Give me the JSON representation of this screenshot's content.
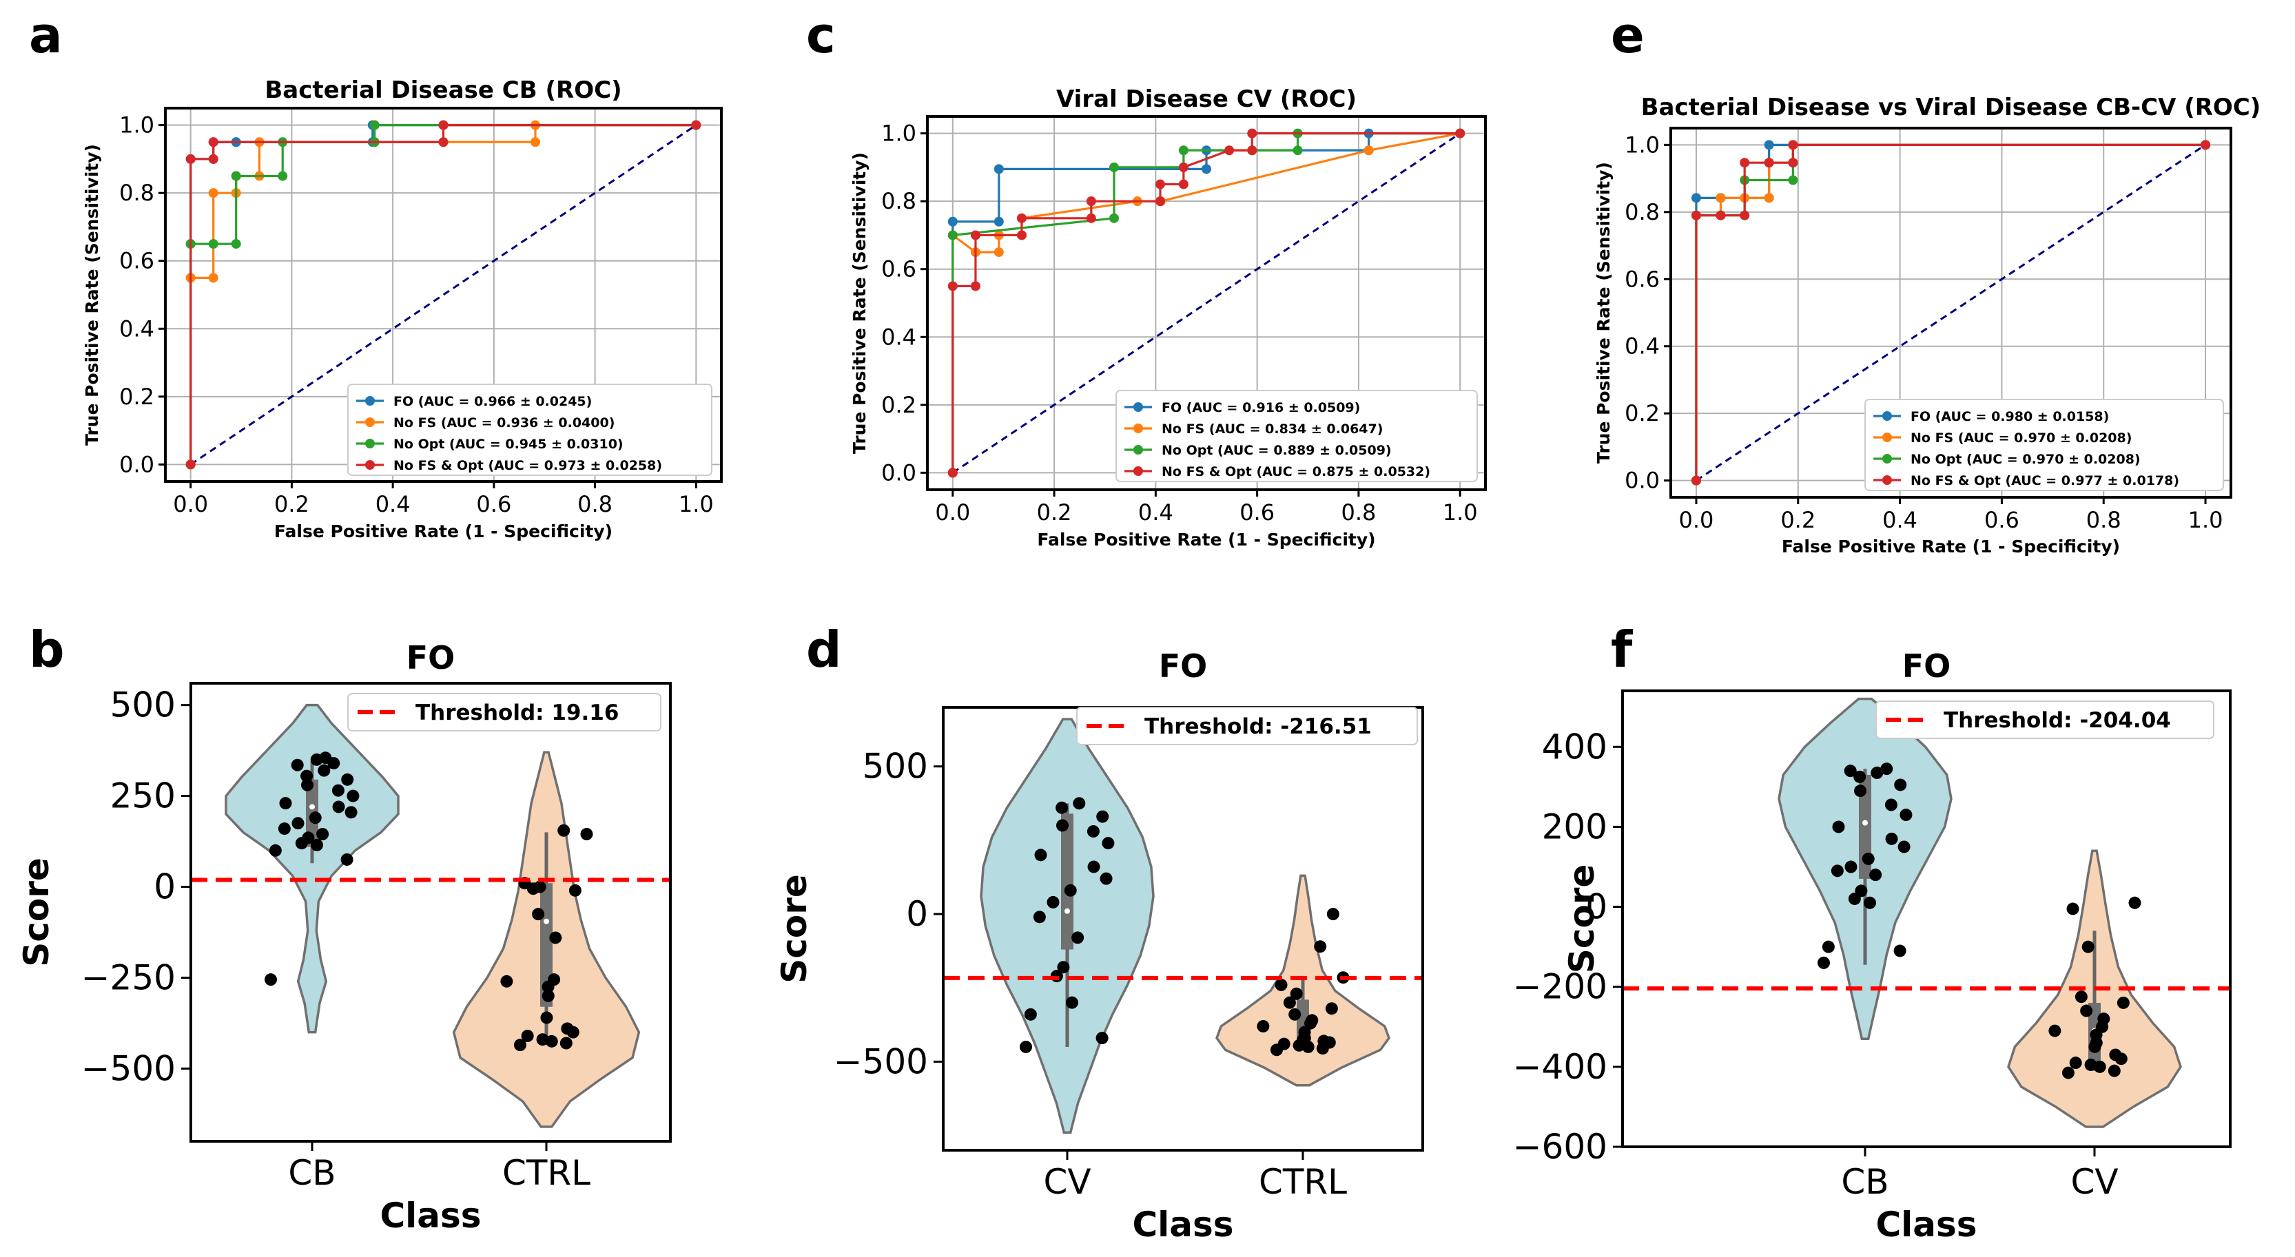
{
  "panels": {
    "a": {
      "letter": "a"
    },
    "b": {
      "letter": "b"
    },
    "c": {
      "letter": "c"
    },
    "d": {
      "letter": "d"
    },
    "e": {
      "letter": "e"
    },
    "f": {
      "letter": "f"
    }
  },
  "colors": {
    "fo": "#1f77b4",
    "nofs": "#ff7f0e",
    "noopt": "#2ca02c",
    "nofsopt": "#d62728",
    "diag": "#000080",
    "threshold": "#ff0000",
    "violin1": "#b6dbe0",
    "violin2": "#f8d4b6"
  },
  "chart_data": [
    {
      "id": "a",
      "type": "line",
      "title": "Bacterial Disease CB (ROC)",
      "xlabel": "False Positive Rate (1 - Specificity)",
      "ylabel": "True Positive Rate (Sensitivity)",
      "xlim": [
        0,
        1
      ],
      "ylim": [
        0,
        1
      ],
      "xticks": [
        "0.0",
        "0.2",
        "0.4",
        "0.6",
        "0.8",
        "1.0"
      ],
      "yticks": [
        "0.0",
        "0.2",
        "0.4",
        "0.6",
        "0.8",
        "1.0"
      ],
      "grid": true,
      "legend_position": "lower-right",
      "series": [
        {
          "name": "FO (AUC = 0.966 ± 0.0245)",
          "color": "#1f77b4",
          "x": [
            0,
            0,
            0,
            0.045,
            0.045,
            0.09,
            0.09,
            0.36,
            0.36,
            0.5,
            1
          ],
          "y": [
            0,
            0.65,
            0.9,
            0.9,
            0.95,
            0.95,
            0.95,
            0.95,
            1,
            1,
            1
          ]
        },
        {
          "name": "No FS (AUC = 0.936 ± 0.0400)",
          "color": "#ff7f0e",
          "x": [
            0,
            0,
            0.045,
            0.045,
            0.09,
            0.09,
            0.136,
            0.136,
            0.5,
            0.682,
            0.682,
            1
          ],
          "y": [
            0,
            0.55,
            0.55,
            0.8,
            0.8,
            0.85,
            0.85,
            0.95,
            0.95,
            0.95,
            1,
            1
          ]
        },
        {
          "name": "No Opt (AUC = 0.945 ± 0.0310)",
          "color": "#2ca02c",
          "x": [
            0,
            0,
            0.045,
            0.09,
            0.09,
            0.182,
            0.182,
            0.364,
            0.364,
            1
          ],
          "y": [
            0,
            0.65,
            0.65,
            0.65,
            0.85,
            0.85,
            0.95,
            0.95,
            1,
            1
          ]
        },
        {
          "name": "No FS & Opt (AUC = 0.973 ± 0.0258)",
          "color": "#d62728",
          "x": [
            0,
            0,
            0.045,
            0.045,
            0.5,
            0.5,
            1
          ],
          "y": [
            0,
            0.9,
            0.9,
            0.95,
            0.95,
            1,
            1
          ]
        }
      ],
      "diagonal": {
        "x": [
          0,
          1
        ],
        "y": [
          0,
          1
        ]
      }
    },
    {
      "id": "c",
      "type": "line",
      "title": "Viral Disease CV (ROC)",
      "xlabel": "False Positive Rate (1 - Specificity)",
      "ylabel": "True Positive Rate (Sensitivity)",
      "xlim": [
        0,
        1
      ],
      "ylim": [
        0,
        1
      ],
      "xticks": [
        "0.0",
        "0.2",
        "0.4",
        "0.6",
        "0.8",
        "1.0"
      ],
      "yticks": [
        "0.0",
        "0.2",
        "0.4",
        "0.6",
        "0.8",
        "1.0"
      ],
      "grid": true,
      "legend_position": "lower-right",
      "series": [
        {
          "name": "FO (AUC = 0.916 ± 0.0509)",
          "color": "#1f77b4",
          "x": [
            0,
            0,
            0.091,
            0.091,
            0.5,
            0.5,
            0.82,
            0.82,
            1
          ],
          "y": [
            0,
            0.74,
            0.74,
            0.895,
            0.895,
            0.95,
            0.95,
            1,
            1
          ]
        },
        {
          "name": "No FS (AUC = 0.834 ± 0.0647)",
          "color": "#ff7f0e",
          "x": [
            0,
            0,
            0.045,
            0.091,
            0.091,
            0.136,
            0.136,
            0.364,
            0.409,
            0.41,
            0.82,
            1
          ],
          "y": [
            0,
            0.7,
            0.65,
            0.65,
            0.7,
            0.7,
            0.75,
            0.8,
            0.8,
            0.8,
            0.95,
            1
          ]
        },
        {
          "name": "No Opt (AUC = 0.889 ± 0.0509)",
          "color": "#2ca02c",
          "x": [
            0,
            0,
            0.318,
            0.318,
            0.455,
            0.455,
            0.59,
            0.68,
            0.68,
            1
          ],
          "y": [
            0,
            0.7,
            0.75,
            0.9,
            0.9,
            0.95,
            0.95,
            0.95,
            1,
            1
          ]
        },
        {
          "name": "No FS & Opt (AUC = 0.875 ± 0.0532)",
          "color": "#d62728",
          "x": [
            0,
            0,
            0.045,
            0.045,
            0.136,
            0.136,
            0.273,
            0.273,
            0.409,
            0.409,
            0.455,
            0.455,
            0.545,
            0.59,
            0.59,
            1
          ],
          "y": [
            0,
            0.55,
            0.55,
            0.7,
            0.7,
            0.75,
            0.75,
            0.8,
            0.8,
            0.85,
            0.85,
            0.9,
            0.95,
            0.95,
            1,
            1
          ]
        }
      ],
      "diagonal": {
        "x": [
          0,
          1
        ],
        "y": [
          0,
          1
        ]
      }
    },
    {
      "id": "e",
      "type": "line",
      "title": "Bacterial Disease vs Viral Disease CB-CV (ROC)",
      "xlabel": "False Positive Rate (1 - Specificity)",
      "ylabel": "True Positive Rate (Sensitivity)",
      "xlim": [
        0,
        1
      ],
      "ylim": [
        0,
        1
      ],
      "xticks": [
        "0.0",
        "0.2",
        "0.4",
        "0.6",
        "0.8",
        "1.0"
      ],
      "yticks": [
        "0.0",
        "0.2",
        "0.4",
        "0.6",
        "0.8",
        "1.0"
      ],
      "grid": true,
      "legend_position": "lower-right",
      "series": [
        {
          "name": "FO (AUC = 0.980 ± 0.0158)",
          "color": "#1f77b4",
          "x": [
            0,
            0,
            0.048,
            0.048,
            0.143,
            0.143,
            1
          ],
          "y": [
            0,
            0.842,
            0.842,
            0.842,
            0.842,
            1,
            1
          ]
        },
        {
          "name": "No FS (AUC = 0.970 ± 0.0208)",
          "color": "#ff7f0e",
          "x": [
            0,
            0,
            0.048,
            0.048,
            0.095,
            0.095,
            0.143,
            0.143,
            0.19,
            0.19,
            1
          ],
          "y": [
            0,
            0.79,
            0.79,
            0.842,
            0.842,
            0.842,
            0.842,
            0.947,
            0.947,
            1,
            1
          ]
        },
        {
          "name": "No Opt (AUC = 0.970 ± 0.0208)",
          "color": "#2ca02c",
          "x": [
            0,
            0,
            0.095,
            0.095,
            0.19,
            0.19,
            1
          ],
          "y": [
            0,
            0.79,
            0.79,
            0.895,
            0.895,
            1,
            1
          ]
        },
        {
          "name": "No FS & Opt (AUC = 0.977 ± 0.0178)",
          "color": "#d62728",
          "x": [
            0,
            0,
            0.048,
            0.048,
            0.095,
            0.095,
            0.143,
            0.143,
            0.19,
            0.19,
            1
          ],
          "y": [
            0,
            0.79,
            0.79,
            0.79,
            0.79,
            0.947,
            0.947,
            0.947,
            0.947,
            1,
            1
          ]
        }
      ],
      "diagonal": {
        "x": [
          0,
          1
        ],
        "y": [
          0,
          1
        ]
      }
    },
    {
      "id": "b",
      "type": "violin",
      "title": "FO",
      "xlabel": "Class",
      "ylabel": "Score",
      "ylim": [
        -700,
        560
      ],
      "yticks": [
        500,
        250,
        0,
        -250,
        -500
      ],
      "ytick_labels": [
        "500",
        "250",
        "0",
        "−250",
        "−500"
      ],
      "categories": [
        "CB",
        "CTRL"
      ],
      "threshold": {
        "label": "Threshold: 19.16",
        "value": 19.16
      },
      "violins": [
        {
          "category": "CB",
          "color": "#b6dbe0",
          "profile": [
            [
              -400,
              3
            ],
            [
              -320,
              7
            ],
            [
              -260,
              13
            ],
            [
              -200,
              8
            ],
            [
              -120,
              4
            ],
            [
              -40,
              6
            ],
            [
              30,
              18
            ],
            [
              100,
              40
            ],
            [
              150,
              64
            ],
            [
              200,
              80
            ],
            [
              250,
              80
            ],
            [
              300,
              66
            ],
            [
              350,
              50
            ],
            [
              400,
              34
            ],
            [
              450,
              18
            ],
            [
              500,
              5
            ]
          ],
          "box": {
            "q1": 110,
            "q3": 295,
            "wmin": 65,
            "wmax": 345,
            "median": 220
          },
          "points": [
            -255,
            75,
            100,
            115,
            120,
            135,
            145,
            160,
            175,
            190,
            205,
            220,
            230,
            250,
            265,
            280,
            295,
            305,
            320,
            335,
            340,
            350,
            355
          ]
        },
        {
          "category": "CTRL",
          "color": "#f8d4b6",
          "profile": [
            [
              -660,
              5
            ],
            [
              -590,
              22
            ],
            [
              -530,
              50
            ],
            [
              -470,
              80
            ],
            [
              -400,
              86
            ],
            [
              -330,
              74
            ],
            [
              -250,
              55
            ],
            [
              -170,
              40
            ],
            [
              -90,
              32
            ],
            [
              -10,
              26
            ],
            [
              70,
              22
            ],
            [
              150,
              18
            ],
            [
              230,
              14
            ],
            [
              300,
              8
            ],
            [
              370,
              2
            ]
          ],
          "box": {
            "q1": -330,
            "q3": 10,
            "wmin": -430,
            "wmax": 150,
            "median": -95
          },
          "points": [
            -435,
            -430,
            -425,
            -420,
            -410,
            -400,
            -390,
            -360,
            -300,
            -275,
            -260,
            -255,
            -140,
            -75,
            -10,
            -5,
            0,
            10,
            145,
            155
          ]
        }
      ]
    },
    {
      "id": "d",
      "type": "violin",
      "title": "FO",
      "xlabel": "Class",
      "ylabel": "Score",
      "ylim": [
        -800,
        700
      ],
      "yticks": [
        500,
        0,
        -500
      ],
      "ytick_labels": [
        "500",
        "0",
        "−500"
      ],
      "categories": [
        "CV",
        "CTRL"
      ],
      "threshold": {
        "label": "Threshold: -216.51",
        "value": -216.51
      },
      "violins": [
        {
          "category": "CV",
          "color": "#b6dbe0",
          "profile": [
            [
              -740,
              3
            ],
            [
              -640,
              10
            ],
            [
              -540,
              20
            ],
            [
              -440,
              30
            ],
            [
              -340,
              42
            ],
            [
              -240,
              56
            ],
            [
              -140,
              68
            ],
            [
              -40,
              76
            ],
            [
              60,
              80
            ],
            [
              160,
              78
            ],
            [
              260,
              70
            ],
            [
              360,
              56
            ],
            [
              460,
              38
            ],
            [
              560,
              20
            ],
            [
              660,
              4
            ]
          ],
          "box": {
            "q1": -120,
            "q3": 340,
            "wmin": -450,
            "wmax": 375,
            "median": 10
          },
          "points": [
            -450,
            -420,
            -340,
            -300,
            -210,
            -180,
            -80,
            -10,
            40,
            80,
            120,
            160,
            200,
            240,
            280,
            300,
            330,
            360,
            375
          ]
        },
        {
          "category": "CTRL",
          "color": "#f8d4b6",
          "profile": [
            [
              -580,
              6
            ],
            [
              -520,
              36
            ],
            [
              -460,
              72
            ],
            [
              -420,
              80
            ],
            [
              -380,
              76
            ],
            [
              -320,
              52
            ],
            [
              -260,
              30
            ],
            [
              -190,
              18
            ],
            [
              -100,
              12
            ],
            [
              -20,
              8
            ],
            [
              60,
              5
            ],
            [
              130,
              2
            ]
          ],
          "box": {
            "q1": -440,
            "q3": -290,
            "wmin": -460,
            "wmax": -215,
            "median": -400
          },
          "points": [
            -460,
            -455,
            -450,
            -445,
            -440,
            -435,
            -430,
            -425,
            -420,
            -400,
            -380,
            -370,
            -360,
            -340,
            -320,
            -300,
            -270,
            -240,
            -215,
            -110,
            0
          ]
        }
      ]
    },
    {
      "id": "f",
      "type": "violin",
      "title": "FO",
      "xlabel": "Class",
      "ylabel": "Score",
      "ylim": [
        -600,
        540
      ],
      "yticks": [
        400,
        200,
        0,
        -200,
        -400,
        -600
      ],
      "ytick_labels": [
        "400",
        "200",
        "0",
        "−200",
        "−400",
        "−600"
      ],
      "categories": [
        "CB",
        "CV"
      ],
      "threshold": {
        "label": "Threshold: -204.04",
        "value": -204.04
      },
      "violins": [
        {
          "category": "CB",
          "color": "#b6dbe0",
          "profile": [
            [
              -330,
              3
            ],
            [
              -270,
              8
            ],
            [
              -200,
              14
            ],
            [
              -120,
              20
            ],
            [
              -40,
              28
            ],
            [
              40,
              42
            ],
            [
              120,
              58
            ],
            [
              200,
              74
            ],
            [
              270,
              80
            ],
            [
              330,
              76
            ],
            [
              400,
              56
            ],
            [
              460,
              32
            ],
            [
              520,
              6
            ]
          ],
          "box": {
            "q1": 70,
            "q3": 330,
            "wmin": -145,
            "wmax": 345,
            "median": 210
          },
          "points": [
            -140,
            -110,
            -100,
            10,
            20,
            40,
            80,
            90,
            100,
            120,
            150,
            170,
            200,
            230,
            255,
            290,
            305,
            325,
            335,
            340,
            345
          ]
        },
        {
          "category": "CV",
          "color": "#f8d4b6",
          "profile": [
            [
              -550,
              8
            ],
            [
              -500,
              36
            ],
            [
              -450,
              68
            ],
            [
              -400,
              80
            ],
            [
              -350,
              74
            ],
            [
              -290,
              54
            ],
            [
              -220,
              34
            ],
            [
              -150,
              22
            ],
            [
              -70,
              15
            ],
            [
              10,
              10
            ],
            [
              80,
              6
            ],
            [
              140,
              2
            ]
          ],
          "box": {
            "q1": -395,
            "q3": -240,
            "wmin": -410,
            "wmax": -60,
            "median": -310
          },
          "points": [
            -415,
            -410,
            -400,
            -395,
            -390,
            -380,
            -370,
            -350,
            -340,
            -320,
            -310,
            -300,
            -280,
            -260,
            -240,
            -225,
            -100,
            -5,
            10
          ]
        }
      ]
    }
  ]
}
